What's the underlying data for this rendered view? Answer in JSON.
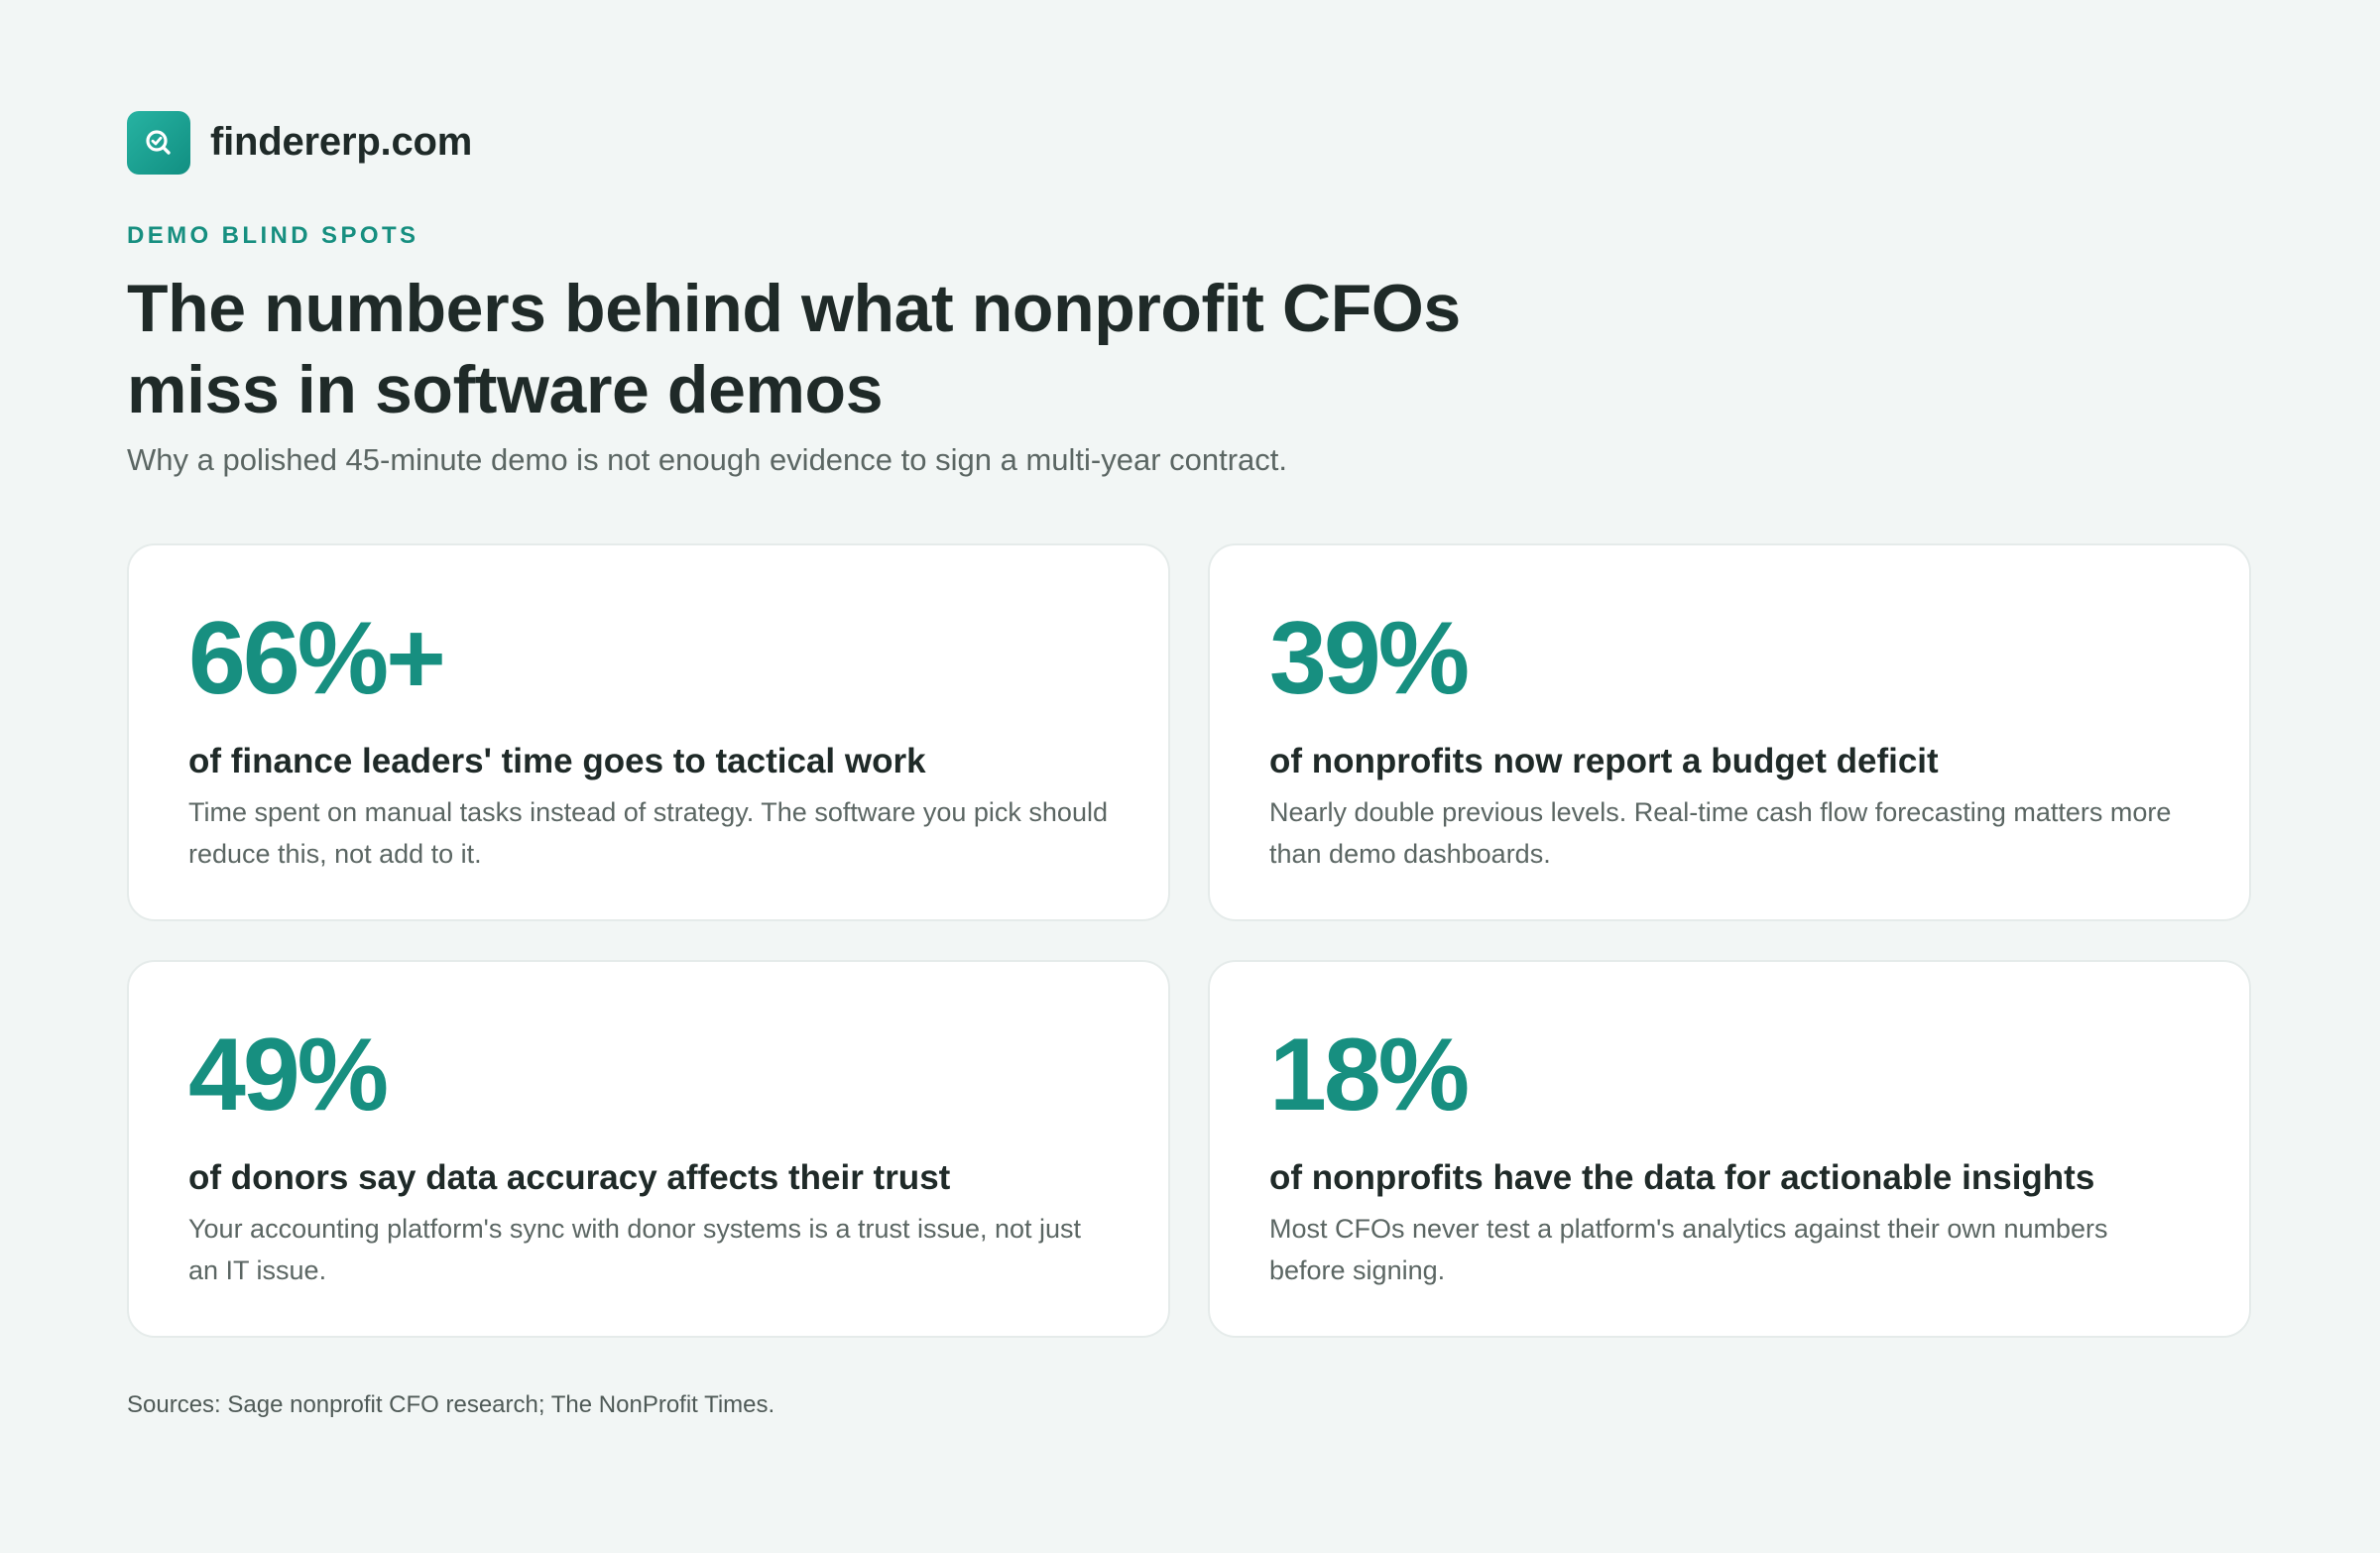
{
  "brand": {
    "logo_icon": "search-check-icon",
    "name": "findererp.com",
    "accent": "#178f80"
  },
  "header": {
    "eyebrow": "DEMO BLIND SPOTS",
    "title": "The numbers behind what nonprofit CFOs miss in software demos",
    "subtitle": "Why a polished 45-minute demo is not enough evidence to sign a multi-year contract."
  },
  "stats": [
    {
      "value": "66%+",
      "label": "of finance leaders' time goes to tactical work",
      "description": "Time spent on manual tasks instead of strategy. The software you pick should reduce this, not add to it."
    },
    {
      "value": "39%",
      "label": "of nonprofits now report a budget deficit",
      "description": "Nearly double previous levels. Real-time cash flow forecasting matters more than demo dashboards."
    },
    {
      "value": "49%",
      "label": "of donors say data accuracy affects their trust",
      "description": "Your accounting platform's sync with donor systems is a trust issue, not just an IT issue."
    },
    {
      "value": "18%",
      "label": "of nonprofits have the data for actionable insights",
      "description": "Most CFOs never test a platform's analytics against their own numbers before signing."
    }
  ],
  "footer": {
    "sources": "Sources: Sage nonprofit CFO research; The NonProfit Times."
  }
}
